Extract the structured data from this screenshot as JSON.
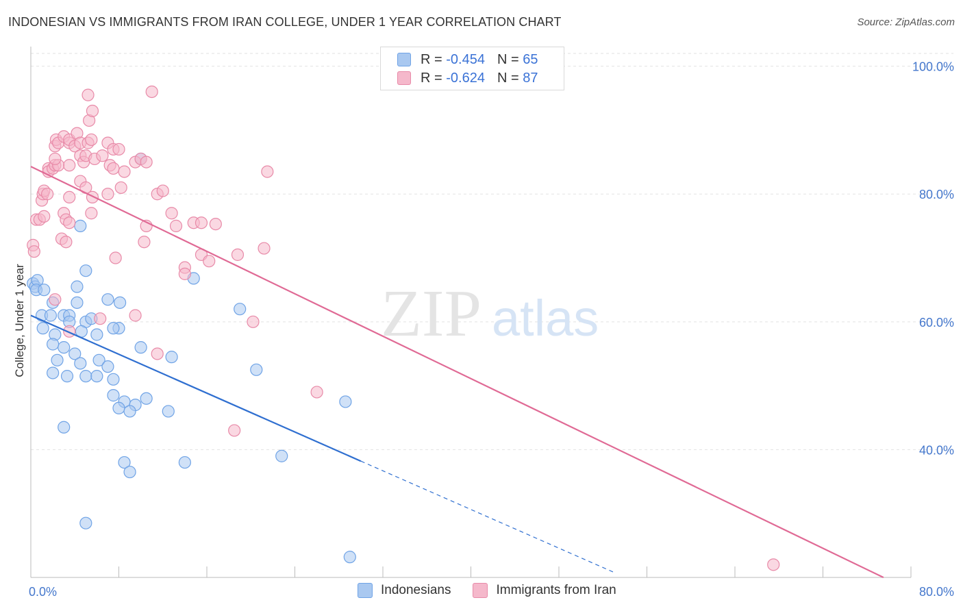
{
  "title": "INDONESIAN VS IMMIGRANTS FROM IRAN COLLEGE, UNDER 1 YEAR CORRELATION CHART",
  "source": "Source: ZipAtlas.com",
  "watermark": {
    "zip": "ZIP",
    "atlas": "atlas"
  },
  "legend_top": [
    {
      "r_label": "R = ",
      "r_value": "-0.454",
      "n_label": "N = ",
      "n_value": "65",
      "color": "#a9c8f0"
    },
    {
      "r_label": "R = ",
      "r_value": "-0.624",
      "n_label": "N = ",
      "n_value": "87",
      "color": "#f5b8cb"
    }
  ],
  "legend_bottom": [
    {
      "label": "Indonesians",
      "color": "#a9c8f0"
    },
    {
      "label": "Immigrants from Iran",
      "color": "#f5b8cb"
    }
  ],
  "chart_data": {
    "type": "scatter",
    "title": "INDONESIAN VS IMMIGRANTS FROM IRAN COLLEGE, UNDER 1 YEAR CORRELATION CHART",
    "xlabel": "",
    "ylabel": "College, Under 1 year",
    "xlim": [
      0,
      80
    ],
    "ylim": [
      20,
      102
    ],
    "x_tick_labels": [
      "0.0%",
      "80.0%"
    ],
    "y_ticks": [
      40,
      60,
      80,
      100
    ],
    "y_tick_labels": [
      "40.0%",
      "60.0%",
      "80.0%",
      "100.0%"
    ],
    "grid": true,
    "series": [
      {
        "name": "Indonesians",
        "color": "#6fa3e6",
        "fill": "#a9c8f0",
        "trend": {
          "x0": 0,
          "y0": 61.0,
          "x1": 30,
          "y1": 38.2,
          "dashed_to_x": 53,
          "dashed_to_y": 20.8,
          "color": "#2f6fd0"
        },
        "points": [
          [
            0.2,
            66
          ],
          [
            0.4,
            65.5
          ],
          [
            0.6,
            66.5
          ],
          [
            0.5,
            65
          ],
          [
            1.2,
            65
          ],
          [
            1,
            61
          ],
          [
            1.8,
            61
          ],
          [
            2,
            63
          ],
          [
            1.1,
            59
          ],
          [
            3,
            61
          ],
          [
            3.5,
            61
          ],
          [
            2.2,
            58
          ],
          [
            3.5,
            60
          ],
          [
            5,
            60
          ],
          [
            6,
            58
          ],
          [
            3,
            56
          ],
          [
            2,
            56.5
          ],
          [
            4,
            55
          ],
          [
            2.4,
            54
          ],
          [
            4.5,
            53.5
          ],
          [
            3.3,
            51.5
          ],
          [
            2,
            52
          ],
          [
            5,
            51.5
          ],
          [
            6,
            51.5
          ],
          [
            6.2,
            54
          ],
          [
            7,
            53
          ],
          [
            7.5,
            51
          ],
          [
            8,
            59
          ],
          [
            7.5,
            48.5
          ],
          [
            8.5,
            47.5
          ],
          [
            9.5,
            47
          ],
          [
            10.5,
            48
          ],
          [
            8,
            46.5
          ],
          [
            9,
            46
          ],
          [
            12.5,
            46
          ],
          [
            10,
            56
          ],
          [
            12.8,
            54.5
          ],
          [
            3,
            43.5
          ],
          [
            8.5,
            38
          ],
          [
            9,
            36.5
          ],
          [
            14,
            38
          ],
          [
            5,
            28.5
          ],
          [
            4.5,
            75
          ],
          [
            5,
            68
          ],
          [
            4.2,
            65.5
          ],
          [
            4.2,
            63
          ],
          [
            5.5,
            60.5
          ],
          [
            4.6,
            58.5
          ],
          [
            7.5,
            59
          ],
          [
            8.1,
            63
          ],
          [
            7,
            63.5
          ],
          [
            10,
            85.5
          ],
          [
            14.8,
            66.8
          ],
          [
            19,
            62
          ],
          [
            20.5,
            52.5
          ],
          [
            22.8,
            39
          ],
          [
            28.6,
            47.5
          ],
          [
            29,
            23.2
          ]
        ]
      },
      {
        "name": "Immigrants from Iran",
        "color": "#e88aa8",
        "fill": "#f5b8cb",
        "trend": {
          "x0": 0,
          "y0": 84.3,
          "x1": 77.5,
          "y1": 20.0,
          "color": "#e06a95"
        },
        "points": [
          [
            0.2,
            72
          ],
          [
            0.3,
            71
          ],
          [
            0.5,
            76
          ],
          [
            0.8,
            76
          ],
          [
            1.2,
            76.5
          ],
          [
            1,
            79
          ],
          [
            1.1,
            80
          ],
          [
            1.2,
            80.5
          ],
          [
            1.5,
            80
          ],
          [
            1.6,
            84
          ],
          [
            1.6,
            83.5
          ],
          [
            2,
            84
          ],
          [
            2.2,
            84.5
          ],
          [
            2.5,
            84.5
          ],
          [
            2.2,
            85.5
          ],
          [
            2.2,
            87.5
          ],
          [
            2.3,
            88.5
          ],
          [
            2.5,
            88
          ],
          [
            3,
            89
          ],
          [
            3.5,
            84.5
          ],
          [
            3.5,
            88
          ],
          [
            3.5,
            88.5
          ],
          [
            4,
            87.5
          ],
          [
            4.2,
            89.5
          ],
          [
            4.5,
            86
          ],
          [
            4.5,
            88
          ],
          [
            4.8,
            85
          ],
          [
            5,
            86
          ],
          [
            5.2,
            88
          ],
          [
            5.3,
            91.5
          ],
          [
            5.5,
            88.5
          ],
          [
            5.2,
            95.5
          ],
          [
            5.6,
            93
          ],
          [
            5.8,
            85.5
          ],
          [
            4.5,
            82
          ],
          [
            5,
            81
          ],
          [
            5.6,
            79.5
          ],
          [
            5.5,
            77
          ],
          [
            3.5,
            79.5
          ],
          [
            3,
            77
          ],
          [
            3.2,
            76
          ],
          [
            3.5,
            75.5
          ],
          [
            2.8,
            73
          ],
          [
            3.2,
            72.5
          ],
          [
            2.2,
            63.5
          ],
          [
            3.5,
            58.5
          ],
          [
            6.3,
            60.5
          ],
          [
            6.5,
            86
          ],
          [
            7,
            88
          ],
          [
            7.2,
            84.5
          ],
          [
            7.5,
            84
          ],
          [
            7.5,
            87
          ],
          [
            8,
            87
          ],
          [
            8.2,
            81
          ],
          [
            8.5,
            83.5
          ],
          [
            7,
            80
          ],
          [
            9.5,
            85
          ],
          [
            10,
            85.5
          ],
          [
            10.5,
            85
          ],
          [
            11,
            96
          ],
          [
            11.5,
            80
          ],
          [
            12,
            80.5
          ],
          [
            10.5,
            75
          ],
          [
            10.3,
            72.5
          ],
          [
            7.7,
            70
          ],
          [
            9.5,
            61
          ],
          [
            11.5,
            55
          ],
          [
            12.8,
            77
          ],
          [
            13.2,
            75
          ],
          [
            14.8,
            75.5
          ],
          [
            15.5,
            75.5
          ],
          [
            16.8,
            75.3
          ],
          [
            14,
            68.5
          ],
          [
            14,
            67.5
          ],
          [
            15.5,
            70.5
          ],
          [
            16.2,
            69.5
          ],
          [
            18.8,
            70.5
          ],
          [
            21.2,
            71.5
          ],
          [
            20.2,
            60
          ],
          [
            21.5,
            83.5
          ],
          [
            18.5,
            43
          ],
          [
            26,
            49
          ],
          [
            67.5,
            22
          ]
        ]
      }
    ]
  }
}
